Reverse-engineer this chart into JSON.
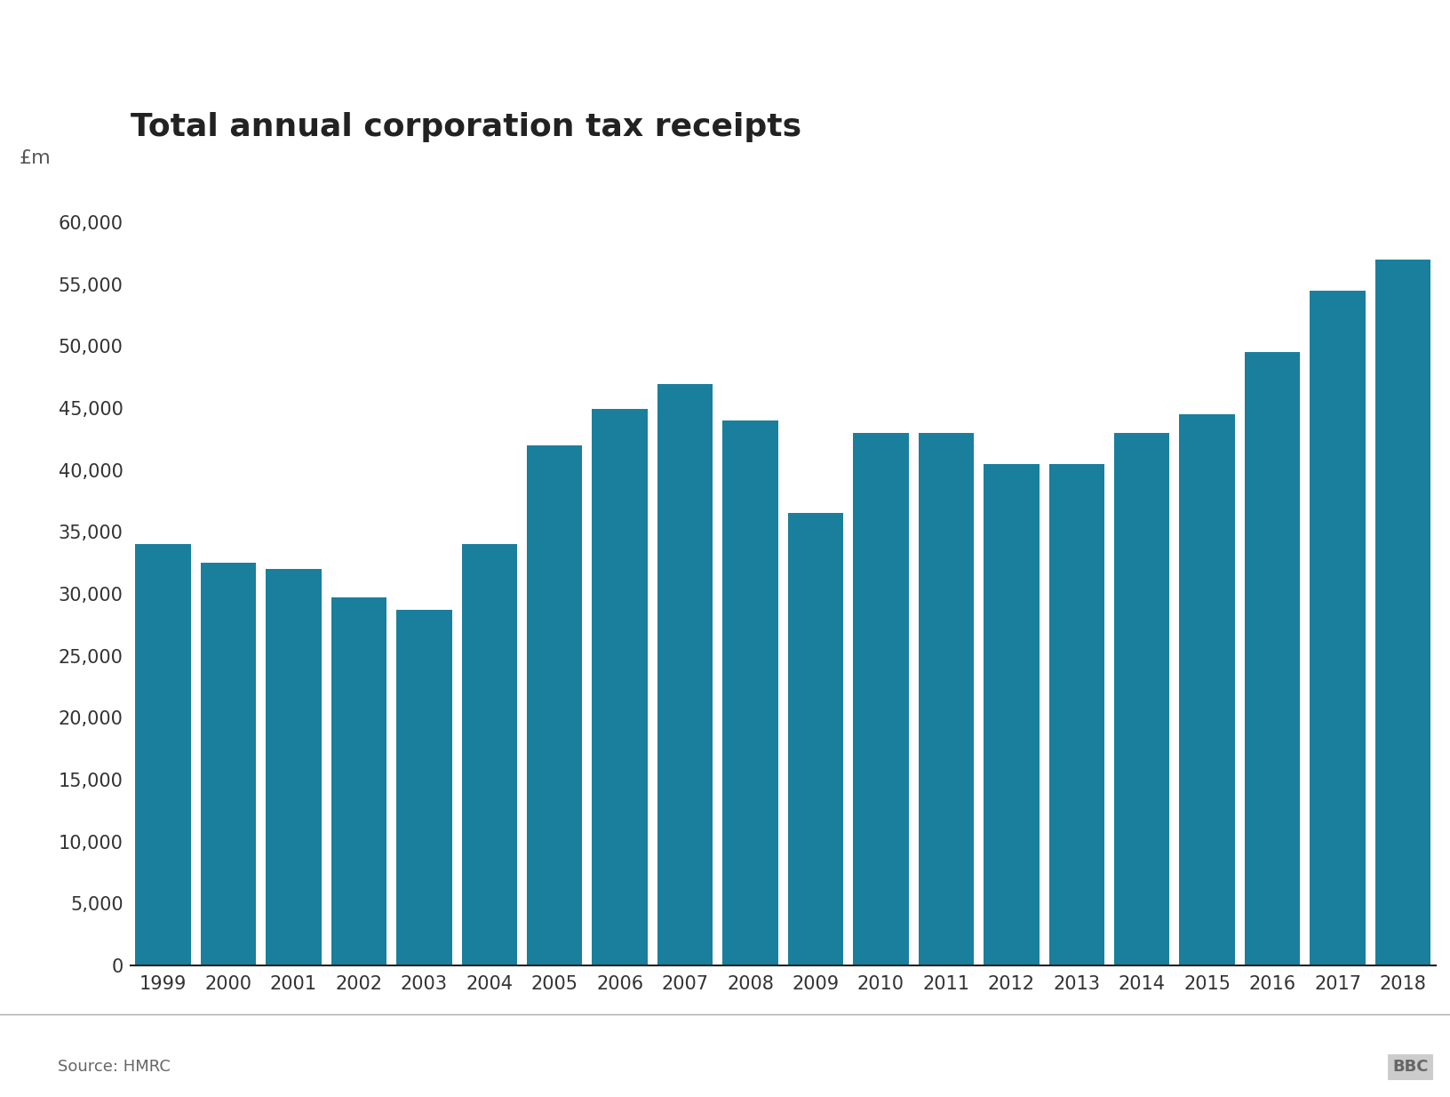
{
  "title": "Total annual corporation tax receipts",
  "ylabel": "£m",
  "source": "Source: HMRC",
  "bar_color": "#1a7f9c",
  "background_color": "#ffffff",
  "years": [
    1999,
    2000,
    2001,
    2002,
    2003,
    2004,
    2005,
    2006,
    2007,
    2008,
    2009,
    2010,
    2011,
    2012,
    2013,
    2014,
    2015,
    2016,
    2017,
    2018
  ],
  "values": [
    34000,
    32500,
    32000,
    29700,
    28700,
    34000,
    42000,
    44900,
    46900,
    44000,
    36500,
    43000,
    43000,
    40500,
    40500,
    43000,
    44500,
    49500,
    54500,
    57000
  ],
  "ylim": [
    0,
    62000
  ],
  "yticks": [
    0,
    5000,
    10000,
    15000,
    20000,
    25000,
    30000,
    35000,
    40000,
    45000,
    50000,
    55000,
    60000
  ],
  "title_fontsize": 26,
  "ylabel_fontsize": 16,
  "tick_fontsize": 15,
  "source_fontsize": 13,
  "bar_width": 0.85
}
